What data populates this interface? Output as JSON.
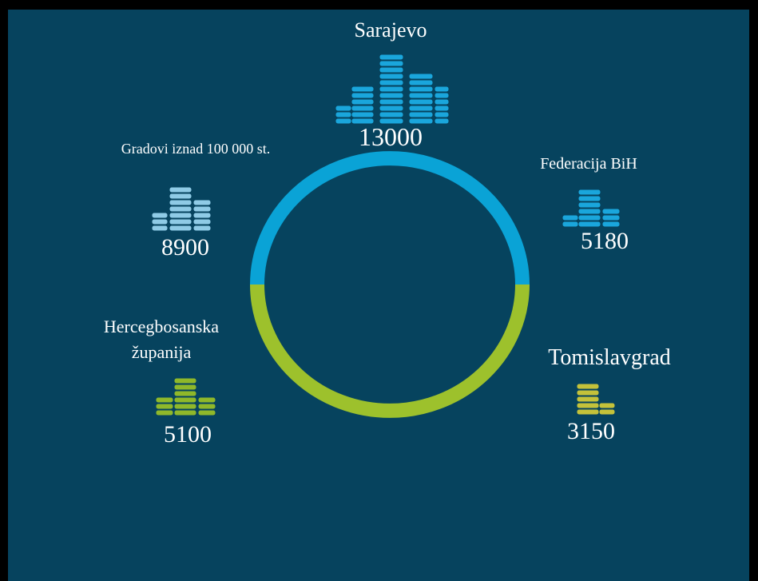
{
  "items": [
    {
      "label_lines": [
        "Sarajevo"
      ],
      "value": 13000
    },
    {
      "label_lines": [
        "Gradovi iznad 100 000 st."
      ],
      "value": 8900
    },
    {
      "label_lines": [
        "Federacija BiH"
      ],
      "value": 5180
    },
    {
      "label_lines": [
        "Hercegbosanska",
        "županija"
      ],
      "value": 5100
    },
    {
      "label_lines": [
        "Tomislavgrad"
      ],
      "value": 3150
    }
  ]
}
